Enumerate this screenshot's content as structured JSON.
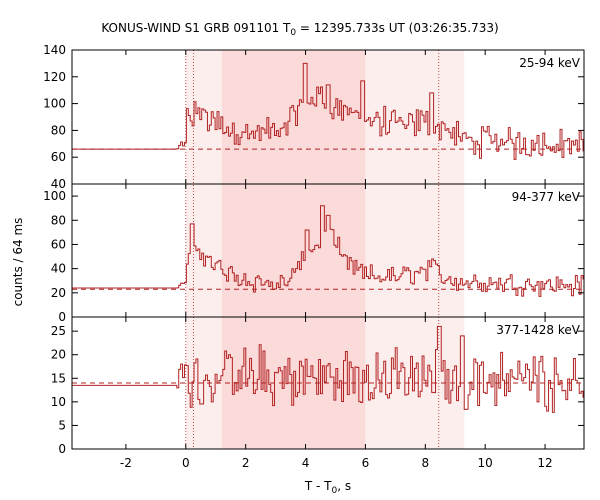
{
  "chart_data": {
    "type": "line",
    "title_main": "KONUS-WIND S1 GRB 091101 T",
    "title_sub": "0",
    "title_rest": " = 12395.733s UT (03:26:35.733)",
    "xlabel_main": "T - T",
    "xlabel_sub": "0",
    "xlabel_rest": ", s",
    "ylabel": "counts / 64 ms",
    "xlim": [
      -3.8,
      13.3
    ],
    "xticks": [
      -2,
      0,
      2,
      4,
      6,
      8,
      10,
      12
    ],
    "bin_s": 0.064,
    "trigger_markers": [
      0.0,
      0.26,
      8.45
    ],
    "shaded_regions": [
      {
        "x0": 0.0,
        "x1": 1.2,
        "shade": "light"
      },
      {
        "x0": 1.2,
        "x1": 6.0,
        "shade": "dark"
      },
      {
        "x0": 6.0,
        "x1": 9.3,
        "shade": "light"
      }
    ],
    "colors": {
      "curve": "#b22222",
      "shade_dark": "#fbdada",
      "shade_light": "#fdeeee",
      "axis": "#000000"
    },
    "panels": [
      {
        "label": "25-94 keV",
        "ylim": [
          40,
          140
        ],
        "yticks": [
          40,
          60,
          80,
          100,
          120,
          140
        ],
        "background": 66,
        "pre_trigger_level": 66,
        "profile": [
          [
            0.0,
            88
          ],
          [
            0.4,
            94
          ],
          [
            1.2,
            82
          ],
          [
            2.2,
            77
          ],
          [
            3.2,
            80
          ],
          [
            3.8,
            98
          ],
          [
            4.3,
            106
          ],
          [
            4.8,
            100
          ],
          [
            5.5,
            93
          ],
          [
            6.0,
            87
          ],
          [
            7.0,
            84
          ],
          [
            8.0,
            86
          ],
          [
            8.6,
            82
          ],
          [
            9.3,
            72
          ],
          [
            13.3,
            70
          ]
        ],
        "noise_amplitude": 10,
        "peak_bins": [
          [
            3.95,
            130
          ],
          [
            4.7,
            114
          ],
          [
            8.2,
            108
          ],
          [
            5.9,
            117
          ]
        ]
      },
      {
        "label": "94-377 keV",
        "ylim": [
          0,
          110
        ],
        "yticks": [
          0,
          20,
          40,
          60,
          80,
          100
        ],
        "background": 23,
        "pre_trigger_level": 24,
        "profile": [
          [
            0.0,
            45
          ],
          [
            0.35,
            58
          ],
          [
            0.8,
            46
          ],
          [
            1.3,
            36
          ],
          [
            2.5,
            28
          ],
          [
            3.3,
            27
          ],
          [
            3.8,
            42
          ],
          [
            4.4,
            62
          ],
          [
            4.8,
            68
          ],
          [
            5.3,
            45
          ],
          [
            6.0,
            34
          ],
          [
            7.0,
            33
          ],
          [
            8.3,
            40
          ],
          [
            8.6,
            33
          ],
          [
            9.3,
            29
          ],
          [
            13.3,
            26
          ]
        ],
        "noise_amplitude": 8,
        "peak_bins": [
          [
            0.2,
            77
          ],
          [
            4.55,
            92
          ],
          [
            4.0,
            72
          ],
          [
            4.75,
            84
          ]
        ]
      },
      {
        "label": "377-1428 keV",
        "ylim": [
          0,
          28
        ],
        "yticks": [
          0,
          5,
          10,
          15,
          20,
          25
        ],
        "background": 14,
        "pre_trigger_level": 13.5,
        "profile": [
          [
            0.0,
            15
          ],
          [
            13.3,
            15
          ]
        ],
        "noise_amplitude": 5.5,
        "peak_bins": [
          [
            8.45,
            26
          ],
          [
            9.2,
            24
          ]
        ]
      }
    ]
  }
}
